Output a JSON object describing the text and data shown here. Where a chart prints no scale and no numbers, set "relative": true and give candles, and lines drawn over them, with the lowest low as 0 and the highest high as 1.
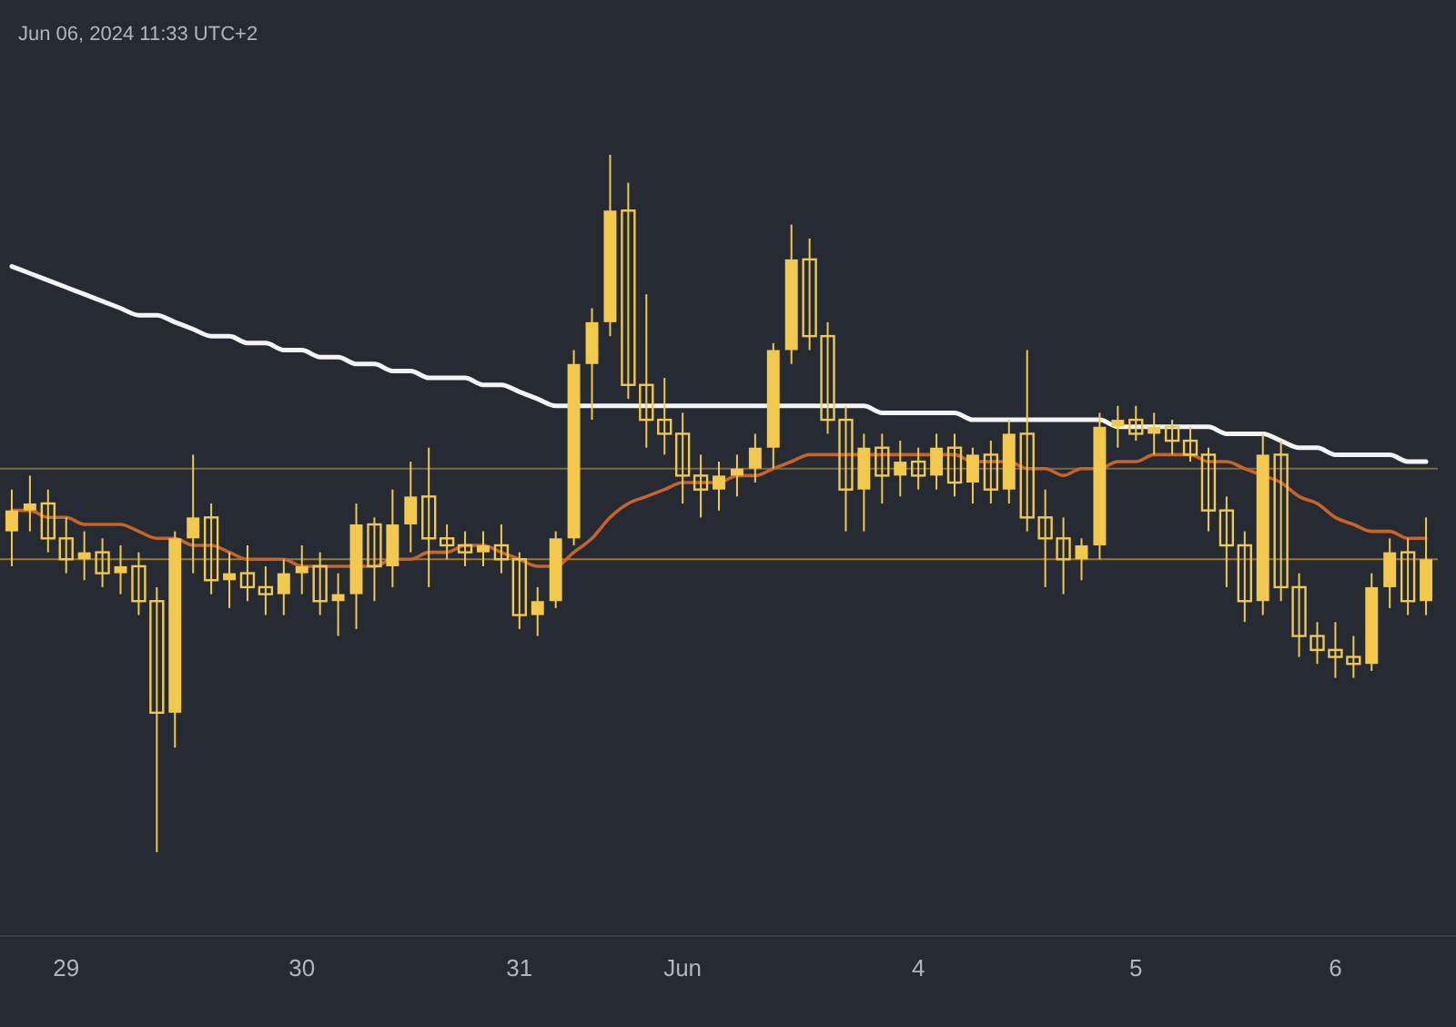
{
  "chart_data": {
    "type": "candlestick",
    "relative": true,
    "annotations": [
      "Jun 06, 2024 11:33 UTC+2"
    ],
    "color": "#f2c94c",
    "grid": false,
    "tick_labels": "x",
    "categories": [
      null,
      null,
      null,
      "29",
      null,
      null,
      null,
      null,
      null,
      null,
      null,
      null,
      null,
      null,
      null,
      null,
      "30",
      null,
      null,
      null,
      null,
      null,
      null,
      null,
      null,
      null,
      null,
      null,
      "31",
      null,
      null,
      null,
      null,
      null,
      null,
      null,
      null,
      "Jun",
      null,
      null,
      null,
      null,
      null,
      null,
      null,
      null,
      null,
      null,
      null,
      null,
      "4",
      null,
      null,
      null,
      null,
      null,
      null,
      null,
      null,
      null,
      null,
      null,
      "5",
      null,
      null,
      null,
      null,
      null,
      null,
      null,
      null,
      null,
      null,
      "6",
      null,
      null,
      null,
      null,
      null
    ],
    "ohlc": [
      [
        0.46,
        0.52,
        0.41,
        0.49
      ],
      [
        0.49,
        0.54,
        0.46,
        0.5
      ],
      [
        0.5,
        0.52,
        0.43,
        0.45
      ],
      [
        0.45,
        0.48,
        0.4,
        0.42
      ],
      [
        0.42,
        0.46,
        0.39,
        0.43
      ],
      [
        0.43,
        0.45,
        0.38,
        0.4
      ],
      [
        0.4,
        0.44,
        0.37,
        0.41
      ],
      [
        0.41,
        0.43,
        0.34,
        0.36
      ],
      [
        0.36,
        0.38,
        0,
        0.2
      ],
      [
        0.2,
        0.46,
        0.15,
        0.45
      ],
      [
        0.45,
        0.57,
        0.4,
        0.48
      ],
      [
        0.48,
        0.5,
        0.37,
        0.39
      ],
      [
        0.39,
        0.43,
        0.35,
        0.4
      ],
      [
        0.4,
        0.44,
        0.36,
        0.38
      ],
      [
        0.38,
        0.41,
        0.34,
        0.37
      ],
      [
        0.37,
        0.42,
        0.34,
        0.4
      ],
      [
        0.4,
        0.44,
        0.37,
        0.41
      ],
      [
        0.41,
        0.43,
        0.34,
        0.36
      ],
      [
        0.36,
        0.4,
        0.31,
        0.37
      ],
      [
        0.37,
        0.5,
        0.32,
        0.47
      ],
      [
        0.47,
        0.48,
        0.36,
        0.41
      ],
      [
        0.41,
        0.52,
        0.38,
        0.47
      ],
      [
        0.47,
        0.56,
        0.43,
        0.51
      ],
      [
        0.51,
        0.58,
        0.38,
        0.45
      ],
      [
        0.45,
        0.47,
        0.42,
        0.44
      ],
      [
        0.44,
        0.46,
        0.41,
        0.43
      ],
      [
        0.43,
        0.46,
        0.41,
        0.44
      ],
      [
        0.44,
        0.47,
        0.4,
        0.42
      ],
      [
        0.42,
        0.43,
        0.32,
        0.34
      ],
      [
        0.34,
        0.38,
        0.31,
        0.36
      ],
      [
        0.36,
        0.46,
        0.35,
        0.45
      ],
      [
        0.45,
        0.72,
        0.44,
        0.7
      ],
      [
        0.7,
        0.78,
        0.62,
        0.76
      ],
      [
        0.76,
        1,
        0.74,
        0.92
      ],
      [
        0.92,
        0.96,
        0.65,
        0.67
      ],
      [
        0.67,
        0.8,
        0.58,
        0.62
      ],
      [
        0.62,
        0.68,
        0.57,
        0.6
      ],
      [
        0.6,
        0.63,
        0.5,
        0.54
      ],
      [
        0.54,
        0.57,
        0.48,
        0.52
      ],
      [
        0.52,
        0.56,
        0.49,
        0.54
      ],
      [
        0.54,
        0.57,
        0.51,
        0.55
      ],
      [
        0.55,
        0.6,
        0.53,
        0.58
      ],
      [
        0.58,
        0.73,
        0.55,
        0.72
      ],
      [
        0.72,
        0.9,
        0.7,
        0.85
      ],
      [
        0.85,
        0.88,
        0.72,
        0.74
      ],
      [
        0.74,
        0.76,
        0.6,
        0.62
      ],
      [
        0.62,
        0.64,
        0.46,
        0.52
      ],
      [
        0.52,
        0.6,
        0.46,
        0.58
      ],
      [
        0.58,
        0.6,
        0.5,
        0.54
      ],
      [
        0.54,
        0.59,
        0.51,
        0.56
      ],
      [
        0.56,
        0.58,
        0.52,
        0.54
      ],
      [
        0.54,
        0.6,
        0.52,
        0.58
      ],
      [
        0.58,
        0.6,
        0.51,
        0.53
      ],
      [
        0.53,
        0.58,
        0.5,
        0.57
      ],
      [
        0.57,
        0.59,
        0.5,
        0.52
      ],
      [
        0.52,
        0.62,
        0.5,
        0.6
      ],
      [
        0.6,
        0.72,
        0.46,
        0.48
      ],
      [
        0.48,
        0.52,
        0.38,
        0.45
      ],
      [
        0.45,
        0.48,
        0.37,
        0.42
      ],
      [
        0.42,
        0.45,
        0.39,
        0.44
      ],
      [
        0.44,
        0.63,
        0.42,
        0.61
      ],
      [
        0.61,
        0.64,
        0.58,
        0.62
      ],
      [
        0.62,
        0.64,
        0.59,
        0.6
      ],
      [
        0.6,
        0.63,
        0.57,
        0.61
      ],
      [
        0.61,
        0.62,
        0.57,
        0.59
      ],
      [
        0.59,
        0.61,
        0.56,
        0.57
      ],
      [
        0.57,
        0.58,
        0.46,
        0.49
      ],
      [
        0.49,
        0.51,
        0.38,
        0.44
      ],
      [
        0.44,
        0.46,
        0.33,
        0.36
      ],
      [
        0.36,
        0.6,
        0.34,
        0.57
      ],
      [
        0.57,
        0.59,
        0.36,
        0.38
      ],
      [
        0.38,
        0.4,
        0.28,
        0.31
      ],
      [
        0.31,
        0.33,
        0.27,
        0.29
      ],
      [
        0.29,
        0.33,
        0.25,
        0.28
      ],
      [
        0.28,
        0.31,
        0.25,
        0.27
      ],
      [
        0.27,
        0.4,
        0.26,
        0.38
      ],
      [
        0.38,
        0.45,
        0.35,
        0.43
      ],
      [
        0.43,
        0.45,
        0.34,
        0.36
      ],
      [
        0.36,
        0.48,
        0.34,
        0.42
      ]
    ],
    "series": [
      {
        "type": "line",
        "color": "#f4f4f4",
        "values": [
          0.84,
          0.83,
          0.82,
          0.81,
          0.8,
          0.79,
          0.78,
          0.77,
          0.77,
          0.76,
          0.75,
          0.74,
          0.74,
          0.73,
          0.73,
          0.72,
          0.72,
          0.71,
          0.71,
          0.7,
          0.7,
          0.69,
          0.69,
          0.68,
          0.68,
          0.68,
          0.67,
          0.67,
          0.66,
          0.65,
          0.64,
          0.64,
          0.64,
          0.64,
          0.64,
          0.64,
          0.64,
          0.64,
          0.64,
          0.64,
          0.64,
          0.64,
          0.64,
          0.64,
          0.64,
          0.64,
          0.64,
          0.64,
          0.63,
          0.63,
          0.63,
          0.63,
          0.63,
          0.62,
          0.62,
          0.62,
          0.62,
          0.62,
          0.62,
          0.62,
          0.62,
          0.61,
          0.61,
          0.61,
          0.61,
          0.61,
          0.61,
          0.6,
          0.6,
          0.6,
          0.59,
          0.58,
          0.58,
          0.57,
          0.57,
          0.57,
          0.57,
          0.56,
          0.56
        ]
      },
      {
        "type": "line",
        "color": "#c8642a",
        "values": [
          0.49,
          0.49,
          0.48,
          0.48,
          0.47,
          0.47,
          0.47,
          0.46,
          0.45,
          0.45,
          0.44,
          0.44,
          0.43,
          0.42,
          0.42,
          0.42,
          0.41,
          0.41,
          0.41,
          0.41,
          0.41,
          0.42,
          0.42,
          0.43,
          0.43,
          0.44,
          0.44,
          0.43,
          0.42,
          0.41,
          0.41,
          0.43,
          0.45,
          0.48,
          0.5,
          0.51,
          0.52,
          0.53,
          0.53,
          0.53,
          0.54,
          0.54,
          0.55,
          0.56,
          0.57,
          0.57,
          0.57,
          0.57,
          0.57,
          0.57,
          0.57,
          0.57,
          0.57,
          0.56,
          0.56,
          0.56,
          0.55,
          0.55,
          0.54,
          0.55,
          0.55,
          0.56,
          0.56,
          0.57,
          0.57,
          0.57,
          0.56,
          0.56,
          0.55,
          0.54,
          0.53,
          0.51,
          0.5,
          0.48,
          0.47,
          0.46,
          0.46,
          0.45,
          0.45
        ]
      }
    ],
    "ref_lines": [
      {
        "axis": "y",
        "value": 0.55,
        "color": "#7a6a45"
      },
      {
        "axis": "y",
        "value": 0.42,
        "color": "#9a7a30"
      }
    ]
  }
}
